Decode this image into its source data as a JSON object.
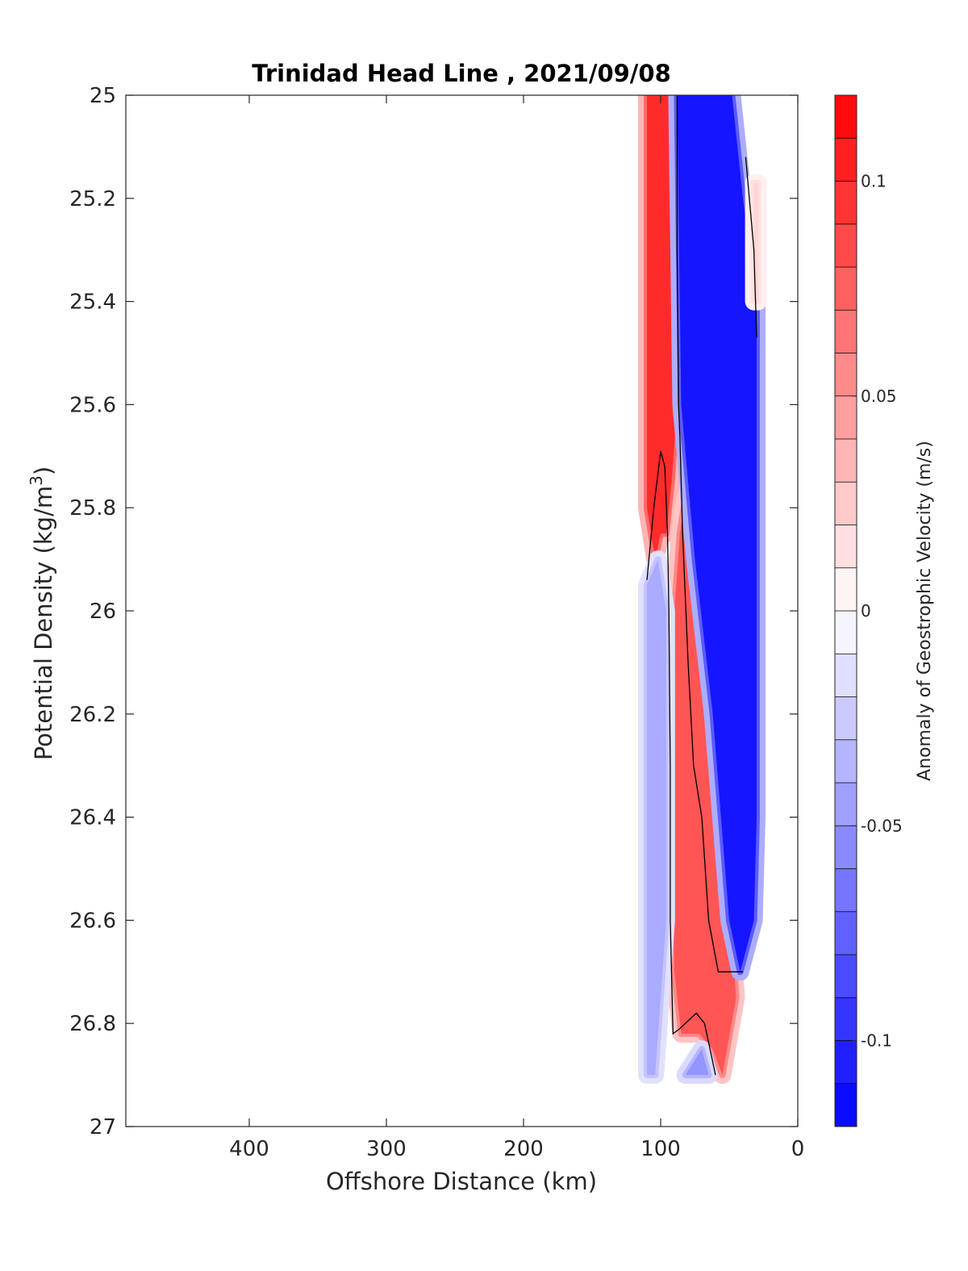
{
  "chart_data": {
    "type": "heatmap",
    "title": "Trinidad Head Line , 2021/09/08",
    "xlabel": "Offshore Distance (km)",
    "ylabel_main": "Potential Density (kg/m",
    "ylabel_sup": "3",
    "ylabel_close": ")",
    "colorbar_label": "Anomaly of Geostrophic Velocity (m/s)",
    "x_reversed": true,
    "xlim": [
      0,
      490
    ],
    "ylim": [
      25,
      27
    ],
    "y_reversed": true,
    "xticks": [
      400,
      300,
      200,
      100,
      0
    ],
    "xtick_labels": [
      "400",
      "300",
      "200",
      "100",
      "0"
    ],
    "yticks": [
      25,
      25.2,
      25.4,
      25.6,
      25.8,
      26,
      26.2,
      26.4,
      26.6,
      26.8,
      27
    ],
    "ytick_labels": [
      "25",
      "25.2",
      "25.4",
      "25.6",
      "25.8",
      "26",
      "26.2",
      "26.4",
      "26.6",
      "26.8",
      "27"
    ],
    "clim": [
      -0.12,
      0.12
    ],
    "colorbar_ticks": [
      0.1,
      0.05,
      0,
      -0.05,
      -0.1
    ],
    "colorbar_tick_labels": [
      "0.1",
      "0.05",
      "0",
      "-0.05",
      "-0.1"
    ],
    "colormap": {
      "positive": "#ff0000",
      "zero": "#ffffff",
      "negative": "#0000ff"
    },
    "contour_color": "#000000",
    "field_regions": [
      {
        "name": "red-band-shallow",
        "sign": "positive",
        "value": 0.1,
        "x": [
          110,
          88,
          88,
          92,
          96,
          100,
          104,
          110
        ],
        "y": [
          25.0,
          25.0,
          25.6,
          25.75,
          25.85,
          25.85,
          25.9,
          25.8
        ]
      },
      {
        "name": "red-band-deep",
        "sign": "positive",
        "value": 0.08,
        "x": [
          82,
          75,
          62,
          50,
          45,
          55,
          62,
          72,
          85,
          90,
          92,
          90,
          86
        ],
        "y": [
          25.78,
          26.0,
          26.3,
          26.55,
          26.75,
          26.9,
          26.85,
          26.82,
          26.82,
          26.7,
          26.3,
          26.0,
          25.85
        ]
      },
      {
        "name": "blue-band-main",
        "sign": "negative",
        "value": -0.11,
        "x": [
          88,
          48,
          40,
          30,
          30,
          32,
          42,
          50,
          62,
          75,
          85
        ],
        "y": [
          25.0,
          25.0,
          25.2,
          25.4,
          26.4,
          26.6,
          26.7,
          26.6,
          26.2,
          25.9,
          25.6
        ]
      },
      {
        "name": "blue-band-offshore",
        "sign": "negative",
        "value": -0.04,
        "x": [
          110,
          102,
          96,
          96,
          100,
          104,
          110
        ],
        "y": [
          25.95,
          25.9,
          26.0,
          26.6,
          26.75,
          26.9,
          26.9
        ]
      },
      {
        "name": "blue-band-bottom",
        "sign": "negative",
        "value": -0.05,
        "x": [
          82,
          70,
          65,
          72,
          80
        ],
        "y": [
          26.9,
          26.85,
          26.9,
          26.9,
          26.9
        ]
      },
      {
        "name": "red-band-coastal",
        "sign": "positive",
        "value": 0.02,
        "x": [
          32,
          29,
          29,
          32
        ],
        "y": [
          25.17,
          25.17,
          25.4,
          25.4
        ]
      }
    ],
    "zero_contours": [
      {
        "x": [
          88,
          88,
          87,
          86,
          84,
          80,
          76,
          70,
          65,
          58,
          40
        ],
        "y": [
          25.0,
          25.3,
          25.6,
          25.66,
          25.85,
          26.1,
          26.3,
          26.4,
          26.6,
          26.7,
          26.7
        ]
      },
      {
        "x": [
          110,
          105,
          100,
          97,
          95,
          94,
          93,
          93,
          91,
          86,
          82,
          74,
          68,
          60
        ],
        "y": [
          25.94,
          25.8,
          25.69,
          25.72,
          25.85,
          26.0,
          26.3,
          26.6,
          26.82,
          26.81,
          26.8,
          26.78,
          26.8,
          26.9
        ]
      },
      {
        "x": [
          38,
          32,
          30
        ],
        "y": [
          25.12,
          25.3,
          25.47
        ]
      }
    ]
  }
}
